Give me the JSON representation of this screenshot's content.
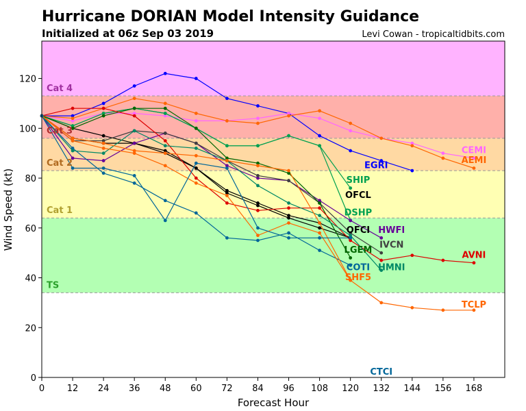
{
  "chart_data": {
    "type": "line",
    "title": "Hurricane DORIAN Model Intensity Guidance",
    "subtitle": "Initialized at 06z Sep 03 2019",
    "credit": "Levi Cowan - tropicaltidbits.com",
    "xlabel": "Forecast Hour",
    "ylabel": "Wind Speed (kt)",
    "xlim": [
      0,
      180
    ],
    "ylim": [
      0,
      135
    ],
    "xticks": [
      0,
      12,
      24,
      36,
      48,
      60,
      72,
      84,
      96,
      108,
      120,
      132,
      144,
      156,
      168
    ],
    "yticks": [
      0,
      20,
      40,
      60,
      80,
      100,
      120
    ],
    "grid": false,
    "bands": [
      {
        "name": "TS",
        "from": 34,
        "to": 64,
        "color": "#b3ffb3",
        "label_color": "#2ca02c"
      },
      {
        "name": "Cat 1",
        "from": 64,
        "to": 83,
        "color": "#ffffb3",
        "label_color": "#b0a030"
      },
      {
        "name": "Cat 2",
        "from": 83,
        "to": 96,
        "color": "#ffd9a3",
        "label_color": "#b06a20"
      },
      {
        "name": "Cat 3",
        "from": 96,
        "to": 113,
        "color": "#ffb0aa",
        "label_color": "#b03030"
      },
      {
        "name": "Cat 4",
        "from": 113,
        "to": 137,
        "color": "#ffb3ff",
        "label_color": "#a030a0"
      }
    ],
    "series": [
      {
        "name": "EGRI",
        "color": "#0000ff",
        "label_x": 130,
        "label_y": 85,
        "x": [
          0,
          12,
          24,
          36,
          48,
          60,
          72,
          84,
          96,
          108,
          120,
          132,
          144
        ],
        "y": [
          105,
          105,
          110,
          117,
          122,
          120,
          112,
          109,
          106,
          97,
          91,
          87,
          83
        ]
      },
      {
        "name": "CEMI",
        "color": "#ff66ff",
        "label_x": 168,
        "label_y": 91,
        "x": [
          0,
          12,
          24,
          36,
          48,
          60,
          72,
          84,
          96,
          108,
          120,
          132,
          144,
          156,
          168
        ],
        "y": [
          105,
          103,
          106,
          106,
          105,
          103,
          103,
          104,
          106,
          104,
          99,
          96,
          94,
          90,
          88
        ]
      },
      {
        "name": "AEMI",
        "color": "#ff6600",
        "label_x": 168,
        "label_y": 87,
        "x": [
          0,
          12,
          24,
          36,
          48,
          60,
          72,
          84,
          96,
          108,
          120,
          132,
          144,
          156,
          168
        ],
        "y": [
          105,
          104,
          108,
          112,
          110,
          106,
          103,
          102,
          105,
          107,
          102,
          96,
          93,
          88,
          84
        ]
      },
      {
        "name": "SHIP",
        "color": "#00a050",
        "label_x": 123,
        "label_y": 79,
        "x": [
          0,
          12,
          24,
          36,
          48,
          60,
          72,
          84,
          96,
          108,
          120
        ],
        "y": [
          105,
          101,
          106,
          108,
          106,
          100,
          93,
          93,
          97,
          93,
          76
        ]
      },
      {
        "name": "OFCL",
        "color": "#000000",
        "label_x": 123,
        "label_y": 73,
        "x": [
          0,
          12,
          24,
          36,
          48,
          60,
          72,
          84,
          96,
          108,
          120
        ],
        "y": [
          105,
          100,
          97,
          94,
          91,
          84,
          75,
          70,
          65,
          62,
          56
        ]
      },
      {
        "name": "DSHP",
        "color": "#00a050",
        "label_x": 123,
        "label_y": 66,
        "x": [
          0,
          12,
          24,
          36,
          48,
          60,
          72,
          84,
          96,
          108,
          120
        ],
        "y": [
          105,
          101,
          106,
          108,
          106,
          100,
          93,
          93,
          97,
          93,
          63
        ]
      },
      {
        "name": "OFCI",
        "color": "#000000",
        "label_x": 123,
        "label_y": 59,
        "x": [
          0,
          12,
          24,
          36,
          48,
          60,
          72,
          84,
          96,
          108,
          120
        ],
        "y": [
          105,
          96,
          94,
          94,
          90,
          84,
          74,
          69,
          64,
          60,
          56
        ]
      },
      {
        "name": "HWFI",
        "color": "#660099",
        "label_x": 136,
        "label_y": 59,
        "x": [
          0,
          12,
          24,
          36,
          48,
          60,
          72,
          84,
          96,
          108,
          120,
          132
        ],
        "y": [
          105,
          88,
          87,
          94,
          98,
          94,
          85,
          80,
          79,
          71,
          63,
          56
        ]
      },
      {
        "name": "IVCN",
        "color": "#404040",
        "label_x": 136,
        "label_y": 53,
        "x": [
          0,
          12,
          24,
          36,
          48,
          60,
          72,
          84,
          96,
          108,
          120,
          132
        ],
        "y": [
          105,
          95,
          95,
          99,
          98,
          94,
          87,
          81,
          79,
          70,
          58,
          50
        ]
      },
      {
        "name": "LGEM",
        "color": "#006600",
        "label_x": 123,
        "label_y": 51,
        "x": [
          0,
          12,
          24,
          36,
          48,
          60,
          72,
          84,
          96,
          108,
          120
        ],
        "y": [
          105,
          100,
          105,
          108,
          108,
          100,
          88,
          86,
          82,
          70,
          48
        ]
      },
      {
        "name": "AVNI",
        "color": "#dd0000",
        "label_x": 168,
        "label_y": 49,
        "x": [
          0,
          12,
          24,
          36,
          48,
          60,
          72,
          84,
          96,
          108,
          120,
          132,
          144,
          156,
          168
        ],
        "y": [
          105,
          108,
          108,
          105,
          95,
          80,
          70,
          67,
          68,
          68,
          55,
          47,
          49,
          47,
          46
        ]
      },
      {
        "name": "COTI",
        "color": "#006699",
        "label_x": 123,
        "label_y": 44,
        "x": [
          0,
          12,
          24,
          36,
          48,
          60,
          72,
          84,
          96,
          108,
          120
        ],
        "y": [
          105,
          92,
          82,
          78,
          71,
          66,
          56,
          55,
          58,
          51,
          45
        ]
      },
      {
        "name": "HMNI",
        "color": "#008866",
        "label_x": 136,
        "label_y": 44,
        "x": [
          0,
          12,
          24,
          36,
          48,
          60,
          72,
          84,
          96,
          108,
          120,
          132
        ],
        "y": [
          105,
          91,
          90,
          99,
          93,
          92,
          87,
          77,
          70,
          65,
          57,
          43
        ]
      },
      {
        "name": "SHF5",
        "color": "#ff6600",
        "label_x": 123,
        "label_y": 40,
        "x": [
          0,
          12,
          24,
          36,
          48,
          60,
          72,
          84,
          96,
          108,
          120
        ],
        "y": [
          105,
          95,
          92,
          90,
          85,
          78,
          73,
          57,
          62,
          58,
          39
        ]
      },
      {
        "name": "TCLP",
        "color": "#ff6600",
        "label_x": 168,
        "label_y": 29,
        "x": [
          0,
          12,
          24,
          36,
          48,
          60,
          72,
          84,
          96,
          108,
          120,
          132,
          144,
          156,
          168
        ],
        "y": [
          105,
          96,
          94,
          91,
          90,
          89,
          87,
          85,
          83,
          62,
          39,
          30,
          28,
          27,
          27
        ]
      },
      {
        "name": "CTCI",
        "color": "#006699",
        "label_x": 132,
        "label_y": 2,
        "x": [
          0,
          12,
          24,
          36,
          48,
          60,
          72,
          84,
          96,
          108,
          120
        ],
        "y": [
          105,
          84,
          84,
          81,
          63,
          86,
          84,
          60,
          56,
          56,
          56
        ]
      }
    ]
  }
}
